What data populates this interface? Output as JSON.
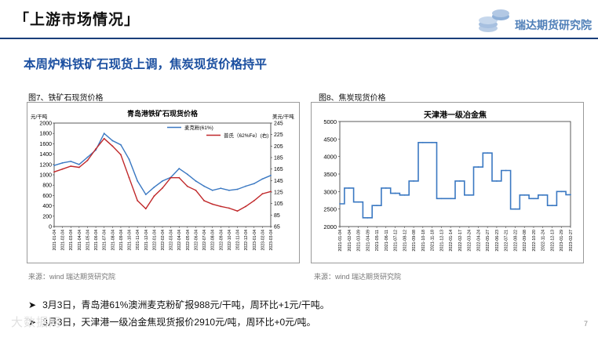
{
  "slide": {
    "title": "「上游市场情况」",
    "logo_text": "瑞达期货研究院",
    "headline": "本周炉料铁矿石现货上调，焦炭现货价格持平",
    "page_number": "7",
    "watermark": "大数据网",
    "colors": {
      "title_blue": "#1b4fa0",
      "rule": "#1a3e7a",
      "logo": "#4f7fb8",
      "series_blue": "#3a78c2",
      "series_red": "#c0282a"
    }
  },
  "figure7": {
    "label": "图7、铁矿石现货价格",
    "source": "来源：wind    瑞达期货研究院",
    "chart_data": {
      "type": "line",
      "title": "青岛港铁矿石现货价格",
      "y_left_unit": "元/干吨",
      "y_right_unit": "美元/干吨",
      "ylim_left": [
        0,
        2000
      ],
      "ylim_right": [
        65,
        245
      ],
      "yticks_left": [
        "0",
        "200",
        "400",
        "600",
        "800",
        "1000",
        "1200",
        "1400",
        "1600",
        "1800",
        "2000"
      ],
      "yticks_right": [
        "65",
        "85",
        "105",
        "125",
        "145",
        "165",
        "185",
        "205",
        "225",
        "245"
      ],
      "x_labels": [
        "2021-01-04",
        "2021-02-04",
        "2021-03-04",
        "2021-04-04",
        "2021-05-04",
        "2021-06-04",
        "2021-07-04",
        "2021-08-04",
        "2021-09-04",
        "2021-10-04",
        "2021-11-04",
        "2021-12-04",
        "2022-01-04",
        "2022-02-04",
        "2022-03-04",
        "2022-04-04",
        "2022-05-04",
        "2022-06-04",
        "2022-07-04",
        "2022-08-04",
        "2022-09-04",
        "2022-10-04",
        "2022-11-04",
        "2022-12-04",
        "2023-01-04",
        "2023-02-04",
        "2023-03-04"
      ],
      "series": [
        {
          "name": "麦克粉(61%)",
          "axis": "left",
          "color": "#3a78c2",
          "values": [
            1180,
            1230,
            1260,
            1200,
            1340,
            1480,
            1800,
            1660,
            1580,
            1300,
            880,
            620,
            760,
            880,
            950,
            1120,
            1010,
            880,
            780,
            700,
            740,
            700,
            720,
            780,
            830,
            920,
            988
          ]
        },
        {
          "name": "普氏（62%Fe）(右)",
          "axis": "right",
          "color": "#c0282a",
          "values": [
            160,
            165,
            170,
            168,
            180,
            200,
            218,
            205,
            190,
            150,
            110,
            96,
            118,
            132,
            150,
            150,
            135,
            128,
            110,
            104,
            100,
            97,
            92,
            100,
            110,
            122,
            126
          ]
        }
      ]
    }
  },
  "figure8": {
    "label": "图8、焦炭现货价格",
    "source": "来源：wind    瑞达期货研究院",
    "chart_data": {
      "type": "line",
      "title": "天津港一级冶金焦",
      "ylim": [
        2000,
        5000
      ],
      "yticks": [
        "2000",
        "2500",
        "3000",
        "3500",
        "4000",
        "4500",
        "5000"
      ],
      "x_labels": [
        "2021-01-04",
        "2021-02-04",
        "2021-03-09",
        "2021-04-09",
        "2021-05-11",
        "2021-06-11",
        "2021-07-12",
        "2021-08-12",
        "2021-09-08",
        "2021-10-18",
        "2021-11-18",
        "2021-12-13",
        "2022-01-14",
        "2022-02-17",
        "2022-03-24",
        "2022-04-24",
        "2022-05-27",
        "2022-06-23",
        "2022-07-21",
        "2022-08-22",
        "2022-09-08",
        "2022-10-20",
        "2022-11-24",
        "2022-12-13",
        "2023-01-29",
        "2023-02-27"
      ],
      "series": [
        {
          "name": "天津港一级冶金焦",
          "color": "#3a78c2",
          "values": [
            2650,
            3100,
            2700,
            2250,
            2600,
            3100,
            2950,
            2900,
            3300,
            4400,
            4400,
            2800,
            2800,
            3300,
            2900,
            3700,
            4100,
            3300,
            3600,
            2500,
            2900,
            2800,
            2900,
            2600,
            3000,
            2910
          ]
        }
      ]
    }
  },
  "bullets": [
    "3月3日，青岛港61%澳洲麦克粉矿报988元/干吨，周环比+1元/干吨。",
    "3月3日，天津港一级冶金焦现货报价2910元/吨，周环比+0元/吨。"
  ]
}
